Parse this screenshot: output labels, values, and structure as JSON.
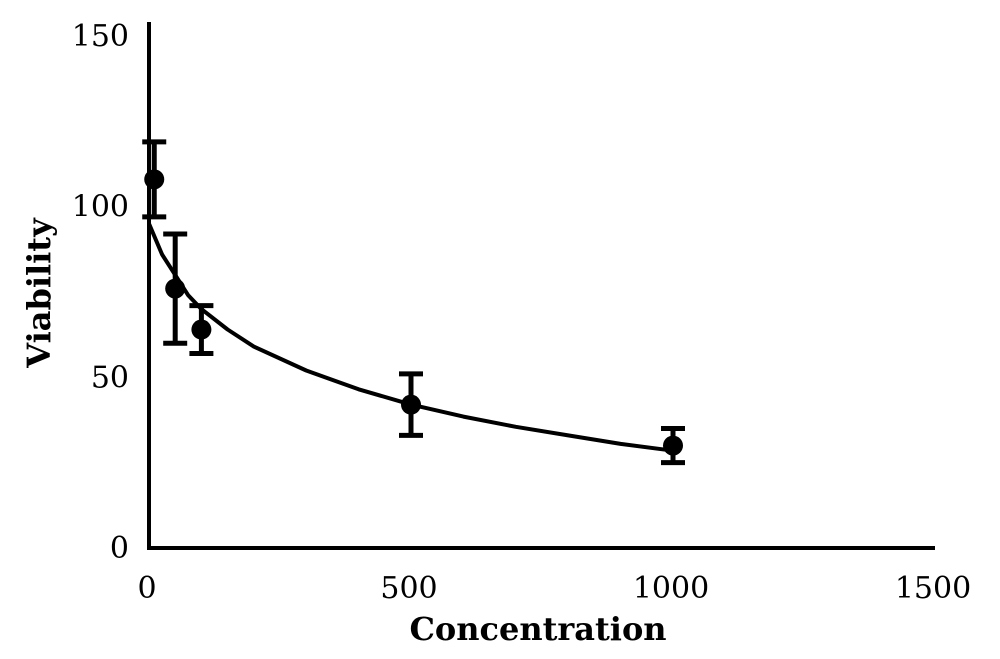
{
  "chart_data": {
    "type": "scatter",
    "title": "",
    "xlabel": "Concentration",
    "ylabel": "Viability",
    "xlim": [
      0,
      1500
    ],
    "ylim": [
      0,
      150
    ],
    "xticks": [
      0,
      500,
      1000,
      1500
    ],
    "yticks": [
      0,
      50,
      100,
      150
    ],
    "grid": false,
    "legend": "none",
    "points": [
      {
        "x": 10,
        "y": 108,
        "err": 11
      },
      {
        "x": 50,
        "y": 76,
        "err": 16
      },
      {
        "x": 100,
        "y": 64,
        "err": 7
      },
      {
        "x": 500,
        "y": 42,
        "err": 9
      },
      {
        "x": 1000,
        "y": 30,
        "err": 5
      }
    ],
    "fit_curve": {
      "x": [
        0,
        25,
        50,
        75,
        100,
        150,
        200,
        300,
        400,
        500,
        600,
        700,
        800,
        900,
        1000
      ],
      "y": [
        95,
        86,
        80,
        74,
        70,
        64,
        59,
        52,
        46.5,
        42,
        38.5,
        35.5,
        33,
        30.5,
        28.5
      ]
    }
  }
}
